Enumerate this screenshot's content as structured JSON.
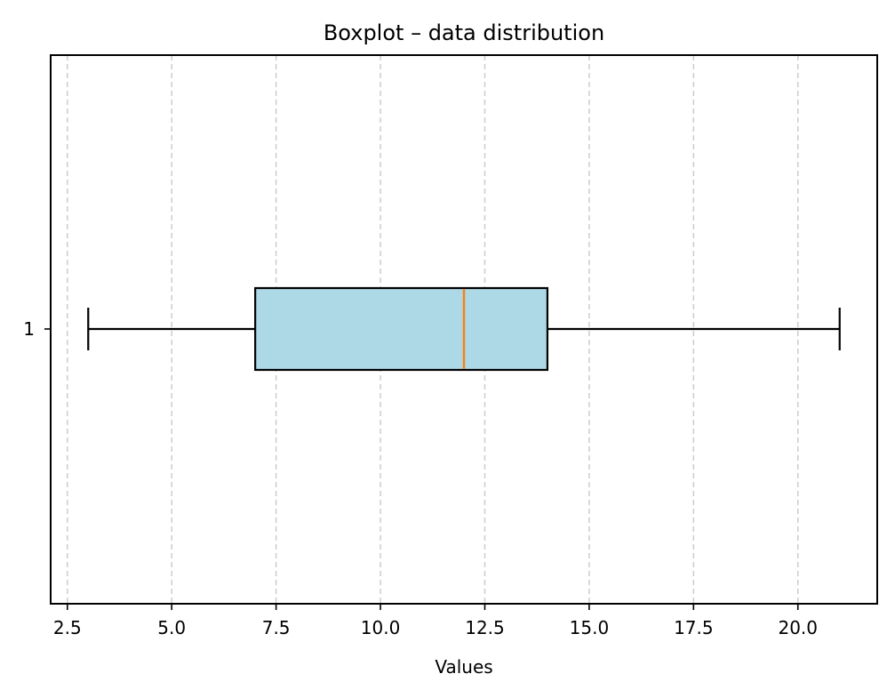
{
  "chart_data": {
    "type": "boxplot",
    "orientation": "horizontal",
    "title": "Boxplot – data distribution",
    "xlabel": "Values",
    "ylabel": "",
    "xlim": [
      2.1,
      21.9
    ],
    "x_ticks": [
      2.5,
      5.0,
      7.5,
      10.0,
      12.5,
      15.0,
      17.5,
      20.0
    ],
    "x_tick_labels": [
      "2.5",
      "5.0",
      "7.5",
      "10.0",
      "12.5",
      "15.0",
      "17.5",
      "20.0"
    ],
    "y_tick_labels": [
      "1"
    ],
    "grid": {
      "axis": "x",
      "style": "dashed",
      "color": "#cccccc"
    },
    "series": [
      {
        "name": "1",
        "whisker_low": 3.0,
        "q1": 7.0,
        "median": 12.0,
        "q3": 14.0,
        "whisker_high": 21.0,
        "outliers": []
      }
    ],
    "colors": {
      "box_fill": "#add8e6",
      "box_edge": "#000000",
      "median": "#ff7f0e",
      "grid": "#cccccc"
    }
  }
}
